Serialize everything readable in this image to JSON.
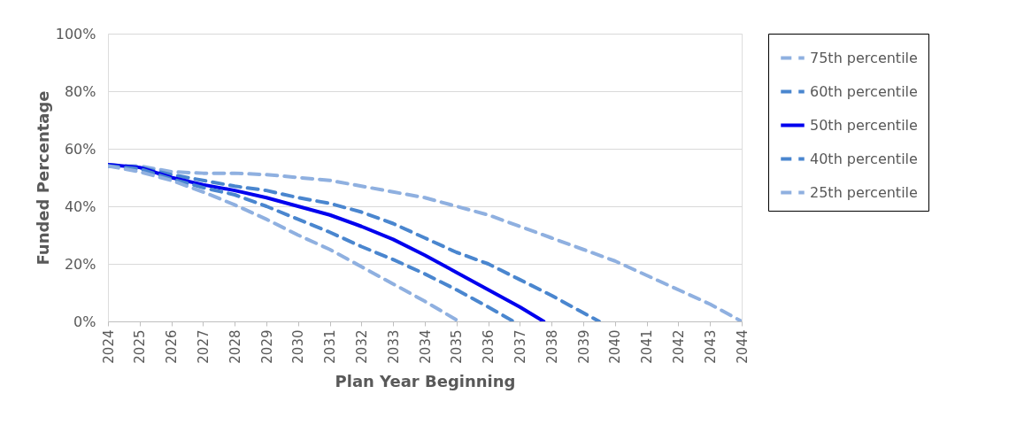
{
  "chart_data": {
    "type": "line",
    "xlabel": "Plan Year Beginning",
    "ylabel": "Funded Percentage",
    "xlim": [
      2024,
      2044
    ],
    "xticks": [
      2024,
      2025,
      2026,
      2027,
      2028,
      2029,
      2030,
      2031,
      2032,
      2033,
      2034,
      2035,
      2036,
      2037,
      2038,
      2039,
      2040,
      2041,
      2042,
      2043,
      2044
    ],
    "ylim": [
      0,
      100
    ],
    "yticks": [
      {
        "value": 0,
        "label": "0%"
      },
      {
        "value": 20,
        "label": "20%"
      },
      {
        "value": 40,
        "label": "40%"
      },
      {
        "value": 60,
        "label": "60%"
      },
      {
        "value": 80,
        "label": "80%"
      },
      {
        "value": 100,
        "label": "100%"
      }
    ],
    "grid": "y",
    "legend": "right",
    "marker": "none",
    "series": [
      {
        "name": "75th percentile",
        "color": "#8fb0e0",
        "line_style": "dashed",
        "x": [
          2024,
          2025,
          2026,
          2027,
          2028,
          2029,
          2030,
          2031,
          2032,
          2033,
          2034,
          2035,
          2036,
          2037,
          2038,
          2039,
          2040,
          2041,
          2042,
          2043,
          2044
        ],
        "values": [
          54,
          54,
          52,
          51.5,
          51.5,
          51,
          50,
          49,
          47,
          45,
          43,
          40,
          37,
          33,
          29,
          25,
          21,
          16,
          11,
          6,
          0
        ]
      },
      {
        "name": "60th percentile",
        "color": "#4a86cf",
        "line_style": "dashed",
        "x": [
          2024,
          2025,
          2026,
          2027,
          2028,
          2029,
          2030,
          2031,
          2032,
          2033,
          2034,
          2035,
          2036,
          2037,
          2038,
          2039,
          2039.5
        ],
        "values": [
          54.5,
          53.5,
          51,
          49,
          47,
          45.5,
          43,
          41,
          38,
          34,
          29,
          24,
          20,
          14.5,
          9,
          3,
          0
        ]
      },
      {
        "name": "50th percentile",
        "color": "#0000ee",
        "line_style": "solid",
        "x": [
          2024,
          2025,
          2026,
          2027,
          2028,
          2029,
          2030,
          2031,
          2032,
          2033,
          2034,
          2035,
          2036,
          2037,
          2037.75
        ],
        "values": [
          54.5,
          53.5,
          50,
          47.5,
          45.5,
          43,
          40,
          37,
          33,
          28.5,
          23,
          17,
          11,
          5,
          0
        ]
      },
      {
        "name": "40th percentile",
        "color": "#4a86cf",
        "line_style": "dashed",
        "x": [
          2024,
          2025,
          2026,
          2027,
          2028,
          2029,
          2030,
          2031,
          2032,
          2033,
          2034,
          2035,
          2036,
          2036.8
        ],
        "values": [
          54,
          53,
          49.5,
          46.5,
          44,
          40,
          35.5,
          31,
          26,
          21.5,
          16.5,
          11,
          5,
          0
        ]
      },
      {
        "name": "25th percentile",
        "color": "#8fb0e0",
        "line_style": "dashed",
        "x": [
          2024,
          2025,
          2026,
          2027,
          2028,
          2029,
          2030,
          2031,
          2032,
          2033,
          2034,
          2035,
          2035.1
        ],
        "values": [
          54,
          52,
          49,
          45,
          40.5,
          35.5,
          30,
          25,
          19,
          13,
          7,
          0.5,
          0
        ]
      }
    ]
  }
}
